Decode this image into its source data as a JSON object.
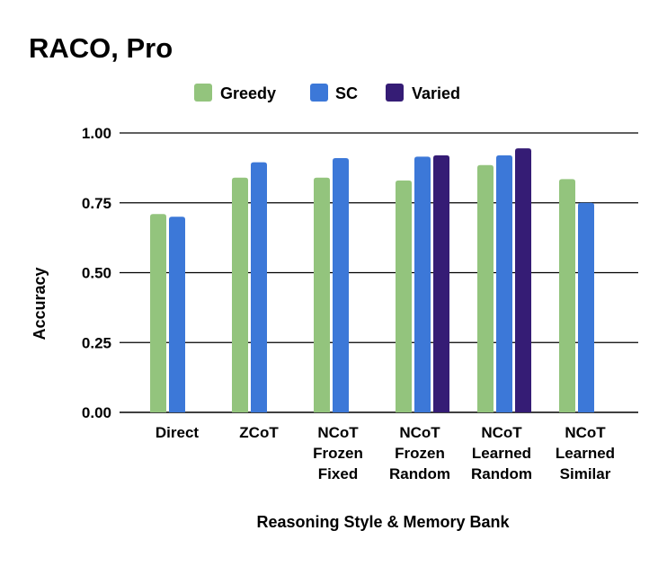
{
  "chart_data": {
    "type": "bar",
    "title": "RACO, Pro",
    "xlabel": "Reasoning Style & Memory Bank",
    "ylabel": "Accuracy",
    "ylim": [
      0,
      1
    ],
    "yticks": [
      "0.00",
      "0.25",
      "0.50",
      "0.75",
      "1.00"
    ],
    "ytick_values": [
      0,
      0.25,
      0.5,
      0.75,
      1.0
    ],
    "grid": true,
    "legend_position": "top-center",
    "categories": [
      [
        "Direct"
      ],
      [
        "ZCoT"
      ],
      [
        "NCoT",
        "Frozen",
        "Fixed"
      ],
      [
        "NCoT",
        "Frozen",
        "Random"
      ],
      [
        "NCoT",
        "Learned",
        "Random"
      ],
      [
        "NCoT",
        "Learned",
        "Similar"
      ]
    ],
    "series": [
      {
        "name": "Greedy",
        "color": "#93c47d",
        "values": [
          0.71,
          0.84,
          0.84,
          0.83,
          0.885,
          0.835
        ]
      },
      {
        "name": "SC",
        "color": "#3c78d8",
        "values": [
          0.7,
          0.895,
          0.91,
          0.915,
          0.92,
          0.75
        ]
      },
      {
        "name": "Varied",
        "color": "#351c75",
        "values": [
          null,
          null,
          null,
          0.92,
          0.945,
          null
        ]
      }
    ]
  }
}
